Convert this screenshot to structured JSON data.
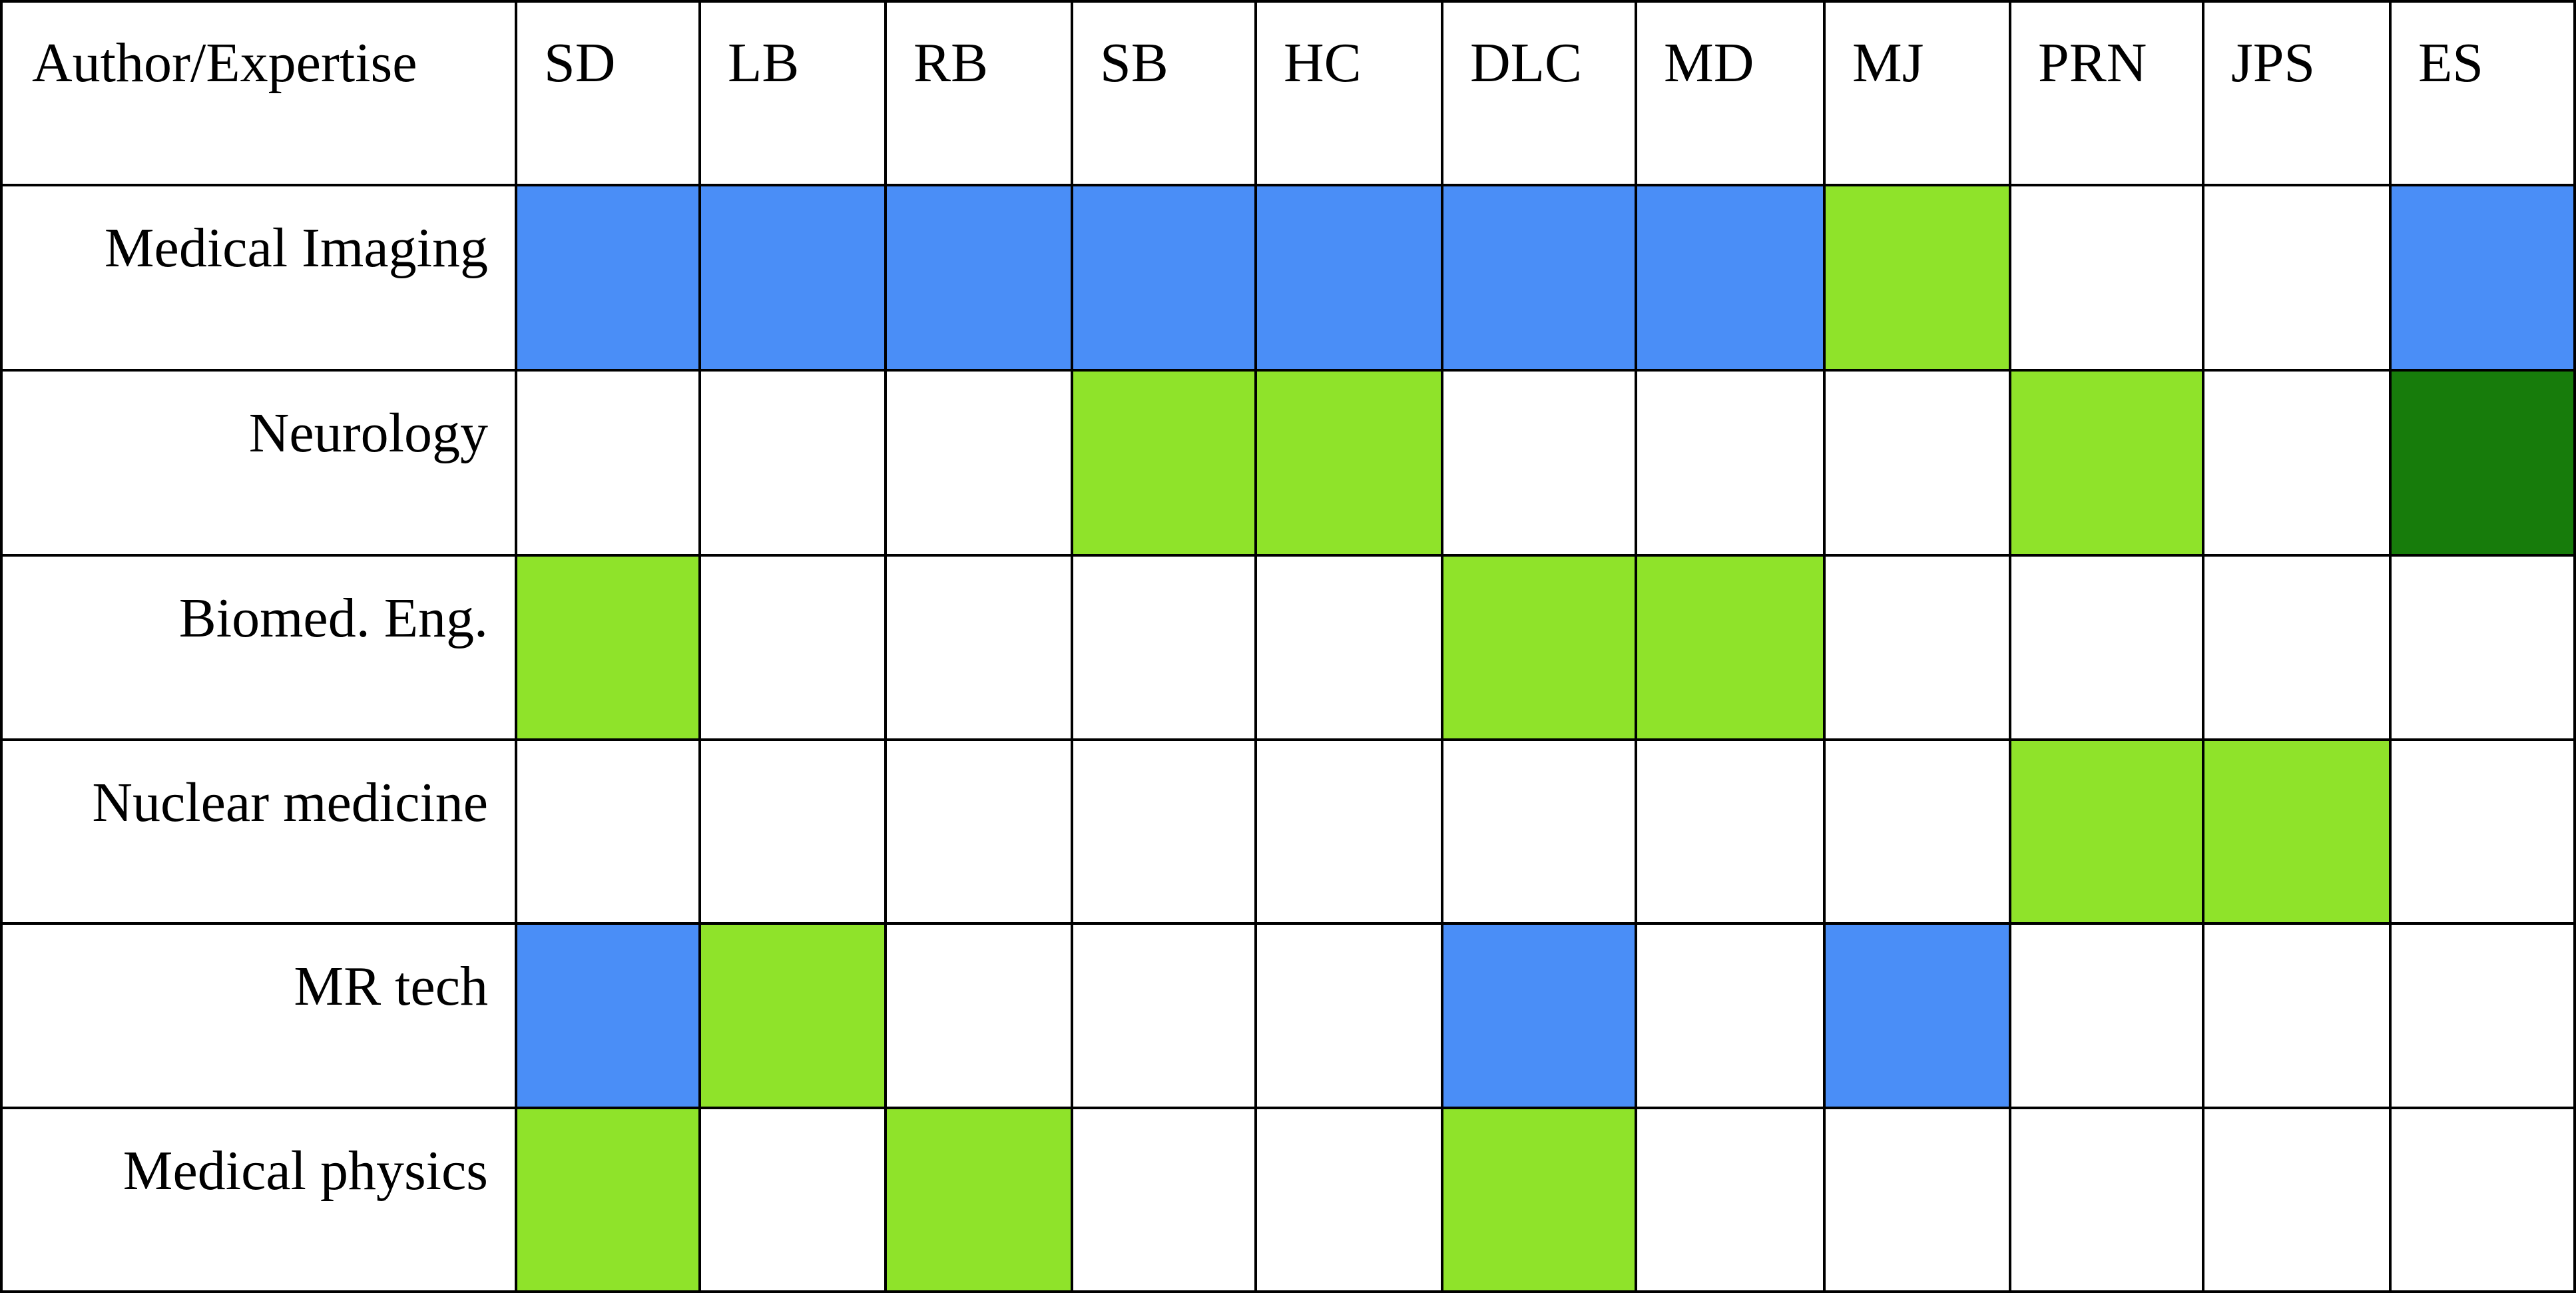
{
  "chart_data": {
    "type": "heatmap",
    "corner_label": "Author/Expertise",
    "columns": [
      "SD",
      "LB",
      "RB",
      "SB",
      "HC",
      "DLC",
      "MD",
      "MJ",
      "PRN",
      "JPS",
      "ES"
    ],
    "rows": [
      {
        "label": "Medical Imaging",
        "cells": [
          "blue",
          "blue",
          "blue",
          "blue",
          "blue",
          "blue",
          "blue",
          "light-green",
          "none",
          "none",
          "blue"
        ]
      },
      {
        "label": "Neurology",
        "cells": [
          "none",
          "none",
          "none",
          "light-green",
          "light-green",
          "none",
          "none",
          "none",
          "light-green",
          "none",
          "dark-green"
        ]
      },
      {
        "label": "Biomed. Eng.",
        "cells": [
          "light-green",
          "none",
          "none",
          "none",
          "none",
          "light-green",
          "light-green",
          "none",
          "none",
          "none",
          "none"
        ]
      },
      {
        "label": "Nuclear medicine",
        "cells": [
          "none",
          "none",
          "none",
          "none",
          "none",
          "none",
          "none",
          "none",
          "light-green",
          "light-green",
          "none"
        ]
      },
      {
        "label": "MR tech",
        "cells": [
          "blue",
          "light-green",
          "none",
          "none",
          "none",
          "blue",
          "none",
          "blue",
          "none",
          "none",
          "none"
        ]
      },
      {
        "label": "Medical physics",
        "cells": [
          "light-green",
          "none",
          "light-green",
          "none",
          "none",
          "light-green",
          "none",
          "none",
          "none",
          "none",
          "none"
        ]
      }
    ],
    "colors": {
      "blue": "#4a8ef7",
      "light-green": "#8fe32a",
      "dark-green": "#177c0b",
      "none": "#ffffff",
      "grid": "#000000"
    }
  }
}
